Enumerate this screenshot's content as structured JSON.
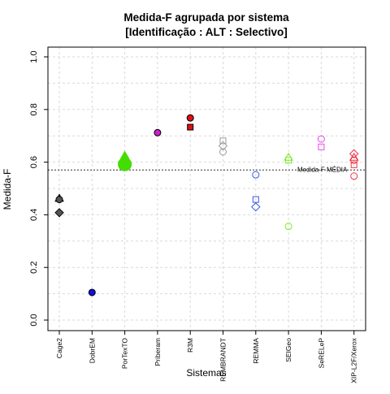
{
  "chart_data": {
    "type": "scatter",
    "title_line1": "Medida-F agrupada por sistema",
    "title_line2": "[Identificação : ALT : Selectivo]",
    "xlabel": "Sistemas",
    "ylabel": "Medida-F",
    "ylim": [
      0,
      1
    ],
    "y_ticks": [
      "0.0",
      "0.2",
      "0.4",
      "0.6",
      "0.8",
      "1.0"
    ],
    "grid": true,
    "categories": [
      "Cage2",
      "DobrEM",
      "PorTexTO",
      "Priberam",
      "R3M",
      "REMBRANDT",
      "REMMA",
      "SEIGeo",
      "SeRELeP",
      "XIP-L2F/Xerox"
    ],
    "mean_line": {
      "value": 0.57,
      "label": "Medida-F MÉDIA"
    },
    "series": [
      {
        "category": "Cage2",
        "color": "#555555",
        "points": [
          {
            "y": 0.462,
            "shape": "triangle",
            "filled": true
          },
          {
            "y": 0.458,
            "shape": "circle",
            "filled": true
          },
          {
            "y": 0.408,
            "shape": "diamond",
            "filled": true
          }
        ]
      },
      {
        "category": "DobrEM",
        "color": "#1010e0",
        "points": [
          {
            "y": 0.105,
            "shape": "circle",
            "filled": true
          }
        ]
      },
      {
        "category": "PorTexTO",
        "color": "#44dd00",
        "points": [
          {
            "y": 0.625,
            "shape": "triangle",
            "filled": true
          },
          {
            "y": 0.61,
            "shape": "triangle",
            "filled": true
          },
          {
            "y": 0.6,
            "shape": "square",
            "filled": true
          },
          {
            "y": 0.592,
            "shape": "circle-large",
            "filled": true
          }
        ]
      },
      {
        "category": "Priberam",
        "color": "#cc22cc",
        "points": [
          {
            "y": 0.712,
            "shape": "circle",
            "filled": true
          }
        ]
      },
      {
        "category": "R3M",
        "color": "#dd1111",
        "points": [
          {
            "y": 0.768,
            "shape": "circle",
            "filled": true
          },
          {
            "y": 0.733,
            "shape": "square",
            "filled": true
          }
        ]
      },
      {
        "category": "REMBRANDT",
        "color": "#999999",
        "points": [
          {
            "y": 0.681,
            "shape": "square",
            "filled": false
          },
          {
            "y": 0.662,
            "shape": "diamond",
            "filled": false
          },
          {
            "y": 0.639,
            "shape": "circle",
            "filled": false
          }
        ]
      },
      {
        "category": "REMMA",
        "color": "#3355ee",
        "points": [
          {
            "y": 0.552,
            "shape": "circle",
            "filled": false
          },
          {
            "y": 0.458,
            "shape": "square",
            "filled": false
          },
          {
            "y": 0.43,
            "shape": "diamond",
            "filled": false
          }
        ]
      },
      {
        "category": "SEIGeo",
        "color": "#77ee22",
        "points": [
          {
            "y": 0.618,
            "shape": "triangle",
            "filled": false
          },
          {
            "y": 0.607,
            "shape": "square",
            "filled": false
          },
          {
            "y": 0.356,
            "shape": "circle",
            "filled": false
          }
        ]
      },
      {
        "category": "SeRELeP",
        "color": "#ee44ee",
        "points": [
          {
            "y": 0.688,
            "shape": "circle",
            "filled": false
          },
          {
            "y": 0.658,
            "shape": "square",
            "filled": false
          }
        ]
      },
      {
        "category": "XIP-L2F/Xerox",
        "color": "#ee3344",
        "points": [
          {
            "y": 0.632,
            "shape": "diamond",
            "filled": false
          },
          {
            "y": 0.618,
            "shape": "triangle",
            "filled": false
          },
          {
            "y": 0.607,
            "shape": "circle",
            "filled": false
          },
          {
            "y": 0.59,
            "shape": "square",
            "filled": false
          },
          {
            "y": 0.547,
            "shape": "circle",
            "filled": false
          }
        ]
      }
    ]
  }
}
